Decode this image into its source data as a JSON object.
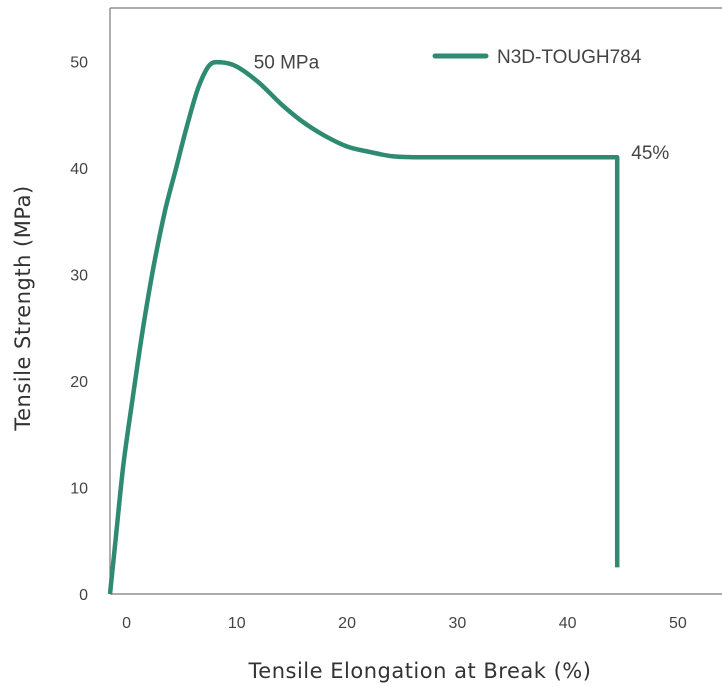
{
  "chart_data": {
    "type": "line",
    "xlabel": "Tensile Elongation at Break (%)",
    "ylabel": "Tensile Strength (MPa)",
    "xlim": [
      -1.5,
      54
    ],
    "ylim": [
      0,
      55
    ],
    "x_ticks": [
      0,
      10,
      20,
      30,
      40,
      50
    ],
    "y_ticks": [
      0,
      10,
      20,
      30,
      40,
      50
    ],
    "grid": false,
    "legend_position": "top-right",
    "line_color": "#2e8b72",
    "series": [
      {
        "name": "N3D-TOUGH784",
        "points": [
          [
            -1.5,
            0
          ],
          [
            -1,
            5
          ],
          [
            -0.3,
            12
          ],
          [
            0.5,
            18
          ],
          [
            1.5,
            25
          ],
          [
            2.5,
            31
          ],
          [
            3.5,
            36
          ],
          [
            4.5,
            40
          ],
          [
            5.5,
            44
          ],
          [
            6.5,
            47.5
          ],
          [
            7.5,
            49.6
          ],
          [
            8.5,
            49.9
          ],
          [
            10,
            49.5
          ],
          [
            12,
            48
          ],
          [
            14,
            46
          ],
          [
            16,
            44.3
          ],
          [
            18,
            43
          ],
          [
            20,
            42
          ],
          [
            22,
            41.5
          ],
          [
            24,
            41.1
          ],
          [
            26,
            41
          ],
          [
            30,
            41
          ],
          [
            35,
            41
          ],
          [
            40,
            41
          ],
          [
            44.5,
            41
          ],
          [
            44.5,
            2.5
          ]
        ]
      }
    ],
    "annotations": [
      {
        "text": "50 MPa",
        "x": 14.5,
        "y": 50
      },
      {
        "text": "45%",
        "x": 47.5,
        "y": 41.5
      }
    ]
  }
}
